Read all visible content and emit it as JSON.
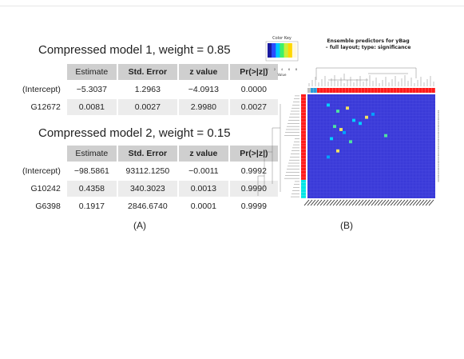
{
  "panel_a": {
    "label": "(A)",
    "models": [
      {
        "title": "Compressed model 1, weight = 0.85",
        "headers": [
          "Estimate",
          "Std. Error",
          "z value",
          "Pr(>|z|)"
        ],
        "rows": [
          {
            "name": "(Intercept)",
            "values": [
              "−5.3037",
              "1.2963",
              "−4.0913",
              "0.0000"
            ]
          },
          {
            "name": "G12672",
            "values": [
              "0.0081",
              "0.0027",
              "2.9980",
              "0.0027"
            ]
          }
        ]
      },
      {
        "title": "Compressed model 2, weight = 0.15",
        "headers": [
          "Estimate",
          "Std. Error",
          "z value",
          "Pr(>|z|)"
        ],
        "rows": [
          {
            "name": "(Intercept)",
            "values": [
              "−98.5861",
              "93112.1250",
              "−0.0011",
              "0.9992"
            ]
          },
          {
            "name": "G10242",
            "values": [
              "0.4358",
              "340.3023",
              "0.0013",
              "0.9990"
            ]
          },
          {
            "name": "G6398",
            "values": [
              "0.1917",
              "2846.6740",
              "0.0001",
              "0.9999"
            ]
          }
        ]
      }
    ]
  },
  "panel_b": {
    "label": "(B)",
    "title_line1": "Ensemble predictors for yBag",
    "title_line2": "– full layout; type: significance",
    "color_key": {
      "title": "Color Key",
      "axis_label": "Value",
      "ticks": [
        "0",
        "2",
        "4",
        "6",
        "8"
      ],
      "colors": [
        "#1a1aa0",
        "#2a4cff",
        "#00c8ff",
        "#3cf06a",
        "#c8f03c",
        "#ffd700",
        "#fff8dc"
      ]
    },
    "heatmap_background": "#3a3ad8",
    "side_colors": [
      "#ff1a1a",
      "#00e5e5"
    ]
  }
}
